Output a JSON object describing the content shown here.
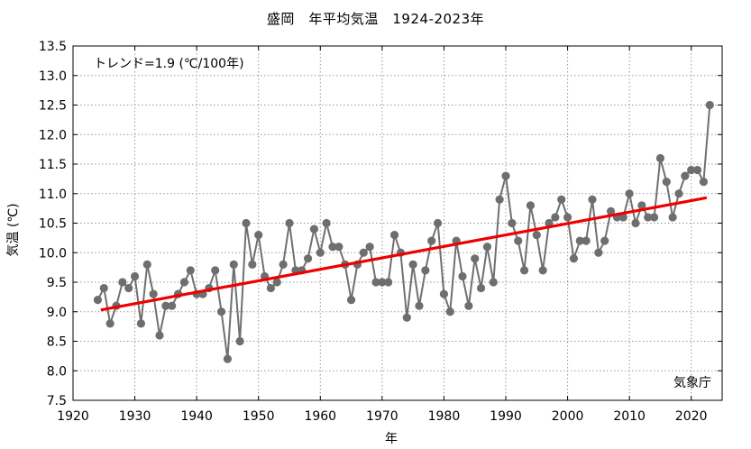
{
  "chart_data": {
    "type": "line",
    "title": "盛岡　年平均気温　1924-2023年",
    "xlabel": "年",
    "ylabel": "気温 (℃)",
    "xlim": [
      1920,
      2025
    ],
    "ylim": [
      7.5,
      13.5
    ],
    "xticks": [
      "1920",
      "1930",
      "1940",
      "1950",
      "1960",
      "1970",
      "1980",
      "1990",
      "2000",
      "2010",
      "2020"
    ],
    "yticks": [
      "7.5",
      "8.0",
      "8.5",
      "9.0",
      "9.5",
      "10.0",
      "10.5",
      "11.0",
      "11.5",
      "12.0",
      "12.5",
      "13.0",
      "13.5"
    ],
    "grid": true,
    "annotation": "トレンド=1.9 (℃/100年)",
    "credit": "気象庁",
    "series": [
      {
        "kind": "observed",
        "color": "#707070",
        "marker_color": "#6e6e6e",
        "x": [
          1924,
          1925,
          1926,
          1927,
          1928,
          1929,
          1930,
          1931,
          1932,
          1933,
          1934,
          1935,
          1936,
          1937,
          1938,
          1939,
          1940,
          1941,
          1942,
          1943,
          1944,
          1945,
          1946,
          1947,
          1948,
          1949,
          1950,
          1951,
          1952,
          1953,
          1954,
          1955,
          1956,
          1957,
          1958,
          1959,
          1960,
          1961,
          1962,
          1963,
          1964,
          1965,
          1966,
          1967,
          1968,
          1969,
          1970,
          1971,
          1972,
          1973,
          1974,
          1975,
          1976,
          1977,
          1978,
          1979,
          1980,
          1981,
          1982,
          1983,
          1984,
          1985,
          1986,
          1987,
          1988,
          1989,
          1990,
          1991,
          1992,
          1993,
          1994,
          1995,
          1996,
          1997,
          1998,
          1999,
          2000,
          2001,
          2002,
          2003,
          2004,
          2005,
          2006,
          2007,
          2008,
          2009,
          2010,
          2011,
          2012,
          2013,
          2014,
          2015,
          2016,
          2017,
          2018,
          2019,
          2020,
          2021,
          2022,
          2023
        ],
        "y": [
          9.2,
          9.4,
          8.8,
          9.1,
          9.5,
          9.4,
          9.6,
          8.8,
          9.8,
          9.3,
          8.6,
          9.1,
          9.1,
          9.3,
          9.5,
          9.7,
          9.3,
          9.3,
          9.4,
          9.7,
          9.0,
          8.2,
          9.8,
          8.5,
          10.5,
          9.8,
          10.3,
          9.6,
          9.4,
          9.5,
          9.8,
          10.5,
          9.7,
          9.7,
          9.9,
          10.4,
          10.0,
          10.5,
          10.1,
          10.1,
          9.8,
          9.2,
          9.8,
          10.0,
          10.1,
          9.5,
          9.5,
          9.5,
          10.3,
          10.0,
          8.9,
          9.8,
          9.1,
          9.7,
          10.2,
          10.5,
          9.3,
          9.0,
          10.2,
          9.6,
          9.1,
          9.9,
          9.4,
          10.1,
          9.5,
          10.9,
          11.3,
          10.5,
          10.2,
          9.7,
          10.8,
          10.3,
          9.7,
          10.5,
          10.6,
          10.9,
          10.6,
          9.9,
          10.2,
          10.2,
          10.9,
          10.0,
          10.2,
          10.7,
          10.6,
          10.6,
          11.0,
          10.5,
          10.8,
          10.6,
          10.6,
          11.6,
          11.2,
          10.6,
          11.0,
          11.3,
          11.4,
          11.4,
          11.2,
          12.5
        ]
      },
      {
        "kind": "trend",
        "color": "#ee0000",
        "x": [
          1924.5,
          2022.5
        ],
        "y": [
          9.03,
          10.93
        ]
      }
    ]
  }
}
